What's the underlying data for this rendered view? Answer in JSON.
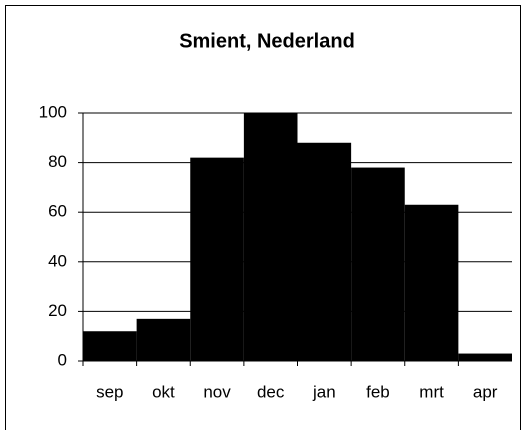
{
  "chart_data": {
    "type": "bar",
    "title": "Smient, Nederland",
    "categories": [
      "sep",
      "okt",
      "nov",
      "dec",
      "jan",
      "feb",
      "mrt",
      "apr"
    ],
    "values": [
      12,
      17,
      82,
      100,
      88,
      78,
      63,
      3
    ],
    "color": "#000000",
    "ylim": [
      0,
      100
    ],
    "yticks": [
      0,
      20,
      40,
      60,
      80,
      100
    ],
    "grid": true
  }
}
